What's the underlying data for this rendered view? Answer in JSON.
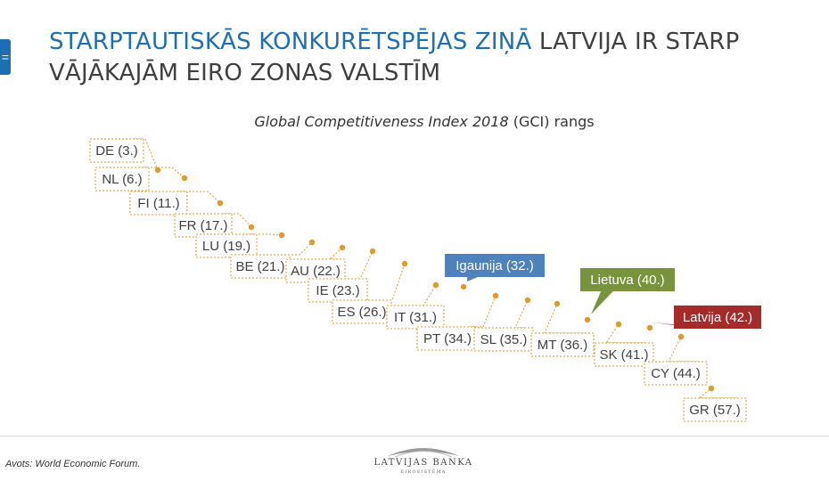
{
  "side_tab": "=",
  "title": {
    "highlight": "STARPTAUTISKĀS KONKURĒTSPĒJAS ZIŅĀ",
    "rest": " LATVIJA IR STARP VĀJĀKAJĀM EIRO ZONAS VALSTĪM"
  },
  "subtitle": {
    "italic": "Global Competitiveness Index 2018",
    "rest": " (GCI) rangs"
  },
  "source": "Avots: World Economic Forum.",
  "logo": {
    "name": "LATVIJAS BANKA",
    "sub": "EIROSISTĒMA"
  },
  "colors": {
    "point": "#e09a2a",
    "leader": "#e09a2a",
    "label_border": "#e09a2a",
    "highlight_estonia": "#4f81bd",
    "highlight_lithuania": "#77933c",
    "highlight_latvia": "#a52a2a",
    "text": "#404040"
  },
  "chart_data": {
    "type": "scatter",
    "title": "Global Competitiveness Index 2018 (GCI) rangs",
    "xlabel": "",
    "ylabel": "",
    "points": [
      {
        "country": "DE",
        "rank": 3,
        "label": "DE (3.)",
        "style": "plain"
      },
      {
        "country": "NL",
        "rank": 6,
        "label": "NL (6.)",
        "style": "plain"
      },
      {
        "country": "FI",
        "rank": 11,
        "label": "FI (11.)",
        "style": "plain"
      },
      {
        "country": "FR",
        "rank": 17,
        "label": "FR (17.)",
        "style": "plain"
      },
      {
        "country": "LU",
        "rank": 19,
        "label": "LU (19.)",
        "style": "plain"
      },
      {
        "country": "BE",
        "rank": 21,
        "label": "BE (21.)",
        "style": "plain"
      },
      {
        "country": "AU",
        "rank": 22,
        "label": "AU (22.)",
        "style": "plain"
      },
      {
        "country": "IE",
        "rank": 23,
        "label": "IE (23.)",
        "style": "plain"
      },
      {
        "country": "ES",
        "rank": 26,
        "label": "ES (26.)",
        "style": "plain"
      },
      {
        "country": "IT",
        "rank": 31,
        "label": "IT (31.)",
        "style": "plain"
      },
      {
        "country": "EE",
        "rank": 32,
        "label": "Igaunija (32.)",
        "style": "estonia"
      },
      {
        "country": "PT",
        "rank": 34,
        "label": "PT (34.)",
        "style": "plain"
      },
      {
        "country": "SL",
        "rank": 35,
        "label": "SL (35.)",
        "style": "plain"
      },
      {
        "country": "MT",
        "rank": 36,
        "label": "MT (36.)",
        "style": "plain"
      },
      {
        "country": "LT",
        "rank": 40,
        "label": "Lietuva (40.)",
        "style": "lithuania"
      },
      {
        "country": "SK",
        "rank": 41,
        "label": "SK (41.)",
        "style": "plain"
      },
      {
        "country": "LV",
        "rank": 42,
        "label": "Latvija (42.)",
        "style": "latvia"
      },
      {
        "country": "CY",
        "rank": 44,
        "label": "CY (44.)",
        "style": "plain"
      },
      {
        "country": "GR",
        "rank": 57,
        "label": "GR (57.)",
        "style": "plain"
      }
    ]
  }
}
